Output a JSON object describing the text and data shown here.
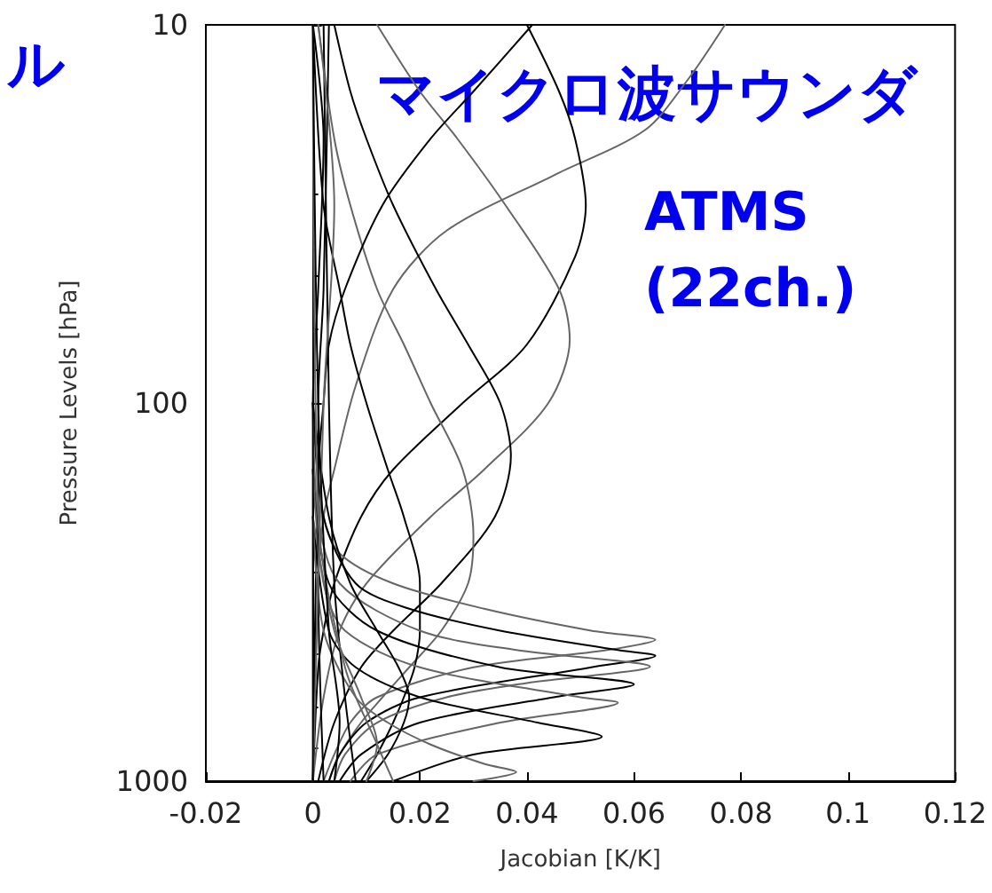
{
  "chart_data": {
    "type": "line",
    "xlabel": "Jacobian [K/K]",
    "ylabel": "Pressure Levels [hPa]",
    "annotations": [
      "ル",
      "マイクロ波サウンダ",
      "ATMS",
      "(22ch.)"
    ],
    "xlim": [
      -0.02,
      0.12
    ],
    "xticks": [
      -0.02,
      0,
      0.02,
      0.04,
      0.06,
      0.08,
      0.1,
      0.12
    ],
    "ylim": [
      1000,
      10
    ],
    "yticks": [
      10,
      100,
      1000
    ],
    "log": "y",
    "marker": "none",
    "line_style": "solid",
    "series": [
      {
        "color": "#666666",
        "x": [
          0.077,
          0.07,
          0.062,
          0.045,
          0.025,
          0.015,
          0.008,
          0.004,
          0.002,
          0.001,
          0
        ],
        "values": [
          10,
          14,
          19,
          25,
          35,
          50,
          90,
          150,
          200,
          300,
          1000
        ]
      },
      {
        "color": "#000000",
        "x": [
          0.04,
          0.046,
          0.049,
          0.051,
          0.049,
          0.04,
          0.028,
          0.015,
          0.009,
          0.004,
          0.002,
          0.001,
          0
        ],
        "values": [
          10,
          15,
          20,
          30,
          41,
          70,
          100,
          150,
          200,
          300,
          400,
          500,
          1000
        ]
      },
      {
        "color": "#666666",
        "x": [
          0.012,
          0.02,
          0.027,
          0.036,
          0.046,
          0.048,
          0.044,
          0.032,
          0.022,
          0.01,
          0.005,
          0.002,
          0
        ],
        "values": [
          10,
          15,
          20,
          30,
          50,
          68,
          100,
          150,
          200,
          300,
          400,
          600,
          1000
        ]
      },
      {
        "color": "#000000",
        "x": [
          0.004,
          0.007,
          0.01,
          0.015,
          0.023,
          0.029,
          0.035,
          0.037,
          0.034,
          0.024,
          0.015,
          0.009,
          0.004,
          0.001
        ],
        "values": [
          10,
          15,
          20,
          30,
          50,
          70,
          100,
          138,
          200,
          300,
          400,
          500,
          700,
          1000
        ]
      },
      {
        "color": "#666666",
        "x": [
          0.001,
          0.004,
          0.007,
          0.012,
          0.017,
          0.022,
          0.028,
          0.03,
          0.029,
          0.024,
          0.018,
          0.013,
          0.009,
          0.005,
          0.003
        ],
        "values": [
          10,
          20,
          30,
          50,
          70,
          100,
          150,
          225,
          300,
          400,
          500,
          600,
          700,
          850,
          1000
        ]
      },
      {
        "color": "#000000",
        "x": [
          0,
          0.002,
          0.005,
          0.007,
          0.01,
          0.014,
          0.017,
          0.02,
          0.02,
          0.019,
          0.017,
          0.015,
          0.012,
          0.009
        ],
        "values": [
          10,
          30,
          50,
          70,
          100,
          150,
          200,
          300,
          400,
          500,
          600,
          700,
          850,
          1000
        ]
      },
      {
        "color": "#000000",
        "x": [
          0.041,
          0.03,
          0.022,
          0.013,
          0.006,
          0.003,
          0.002,
          0.001,
          0
        ],
        "values": [
          10,
          15,
          20,
          30,
          50,
          70,
          100,
          150,
          1000
        ]
      },
      {
        "color": "#666666",
        "x": [
          0,
          0.002,
          0.005,
          0.015,
          0.032,
          0.052,
          0.064,
          0.055,
          0.03,
          0.012,
          0.007,
          0.004,
          0.002
        ],
        "values": [
          100,
          200,
          250,
          300,
          350,
          400,
          423,
          450,
          500,
          600,
          700,
          850,
          1000
        ]
      },
      {
        "color": "#000000",
        "x": [
          0,
          0.002,
          0.008,
          0.018,
          0.035,
          0.057,
          0.064,
          0.052,
          0.02,
          0.01,
          0.005,
          0.003
        ],
        "values": [
          100,
          200,
          300,
          350,
          400,
          450,
          466,
          500,
          600,
          700,
          850,
          1000
        ]
      },
      {
        "color": "#666666",
        "x": [
          0,
          0.001,
          0.005,
          0.02,
          0.038,
          0.063,
          0.04,
          0.025,
          0.012,
          0.006,
          0.004
        ],
        "values": [
          100,
          200,
          300,
          400,
          450,
          498,
          550,
          600,
          700,
          850,
          1000
        ]
      },
      {
        "color": "#000000",
        "x": [
          0,
          0.003,
          0.012,
          0.035,
          0.06,
          0.045,
          0.02,
          0.009,
          0.005
        ],
        "values": [
          150,
          300,
          400,
          500,
          555,
          600,
          700,
          850,
          1000
        ]
      },
      {
        "color": "#666666",
        "x": [
          0,
          0.002,
          0.006,
          0.02,
          0.05,
          0.057,
          0.035,
          0.012,
          0.007
        ],
        "values": [
          150,
          300,
          400,
          500,
          600,
          620,
          700,
          850,
          1000
        ]
      },
      {
        "color": "#000000",
        "x": [
          0,
          0.003,
          0.008,
          0.02,
          0.042,
          0.054,
          0.03,
          0.015
        ],
        "values": [
          200,
          400,
          500,
          600,
          700,
          762,
          850,
          1000
        ]
      },
      {
        "color": "#666666",
        "x": [
          0,
          0.002,
          0.008,
          0.014,
          0.022,
          0.032,
          0.038,
          0.03
        ],
        "values": [
          200,
          400,
          600,
          700,
          800,
          900,
          946,
          1000
        ]
      },
      {
        "color": "#000000",
        "x": [
          0,
          0.003,
          0.007,
          0.012,
          0.016,
          0.018,
          0.017,
          0.014,
          0.01
        ],
        "values": [
          100,
          200,
          300,
          400,
          500,
          600,
          700,
          850,
          1000
        ]
      },
      {
        "color": "#666666",
        "x": [
          0,
          0.004,
          0.009,
          0.012,
          0.01
        ],
        "values": [
          200,
          400,
          600,
          800,
          1000
        ]
      },
      {
        "color": "#000000",
        "x": [
          0.002,
          0.003,
          0.004,
          0.006,
          0.008
        ],
        "values": [
          10,
          100,
          300,
          600,
          1000
        ]
      },
      {
        "color": "#000000",
        "x": [
          0.003,
          0.002,
          0.001,
          0.001,
          0.002
        ],
        "values": [
          10,
          50,
          100,
          300,
          1000
        ]
      },
      {
        "color": "#666666",
        "x": [
          0.001,
          0.004,
          0.002,
          0
        ],
        "values": [
          10,
          30,
          100,
          1000
        ]
      },
      {
        "color": "#000000",
        "x": [
          0,
          0.002,
          0.001,
          0,
          0
        ],
        "values": [
          10,
          20,
          50,
          100,
          1000
        ]
      },
      {
        "color": "#666666",
        "x": [
          0,
          0.001,
          0.006,
          0.012,
          0.015
        ],
        "values": [
          10,
          200,
          500,
          800,
          1000
        ]
      },
      {
        "color": "#000000",
        "x": [
          0,
          0.001,
          0.003,
          0.005,
          0.004
        ],
        "values": [
          10,
          100,
          400,
          700,
          1000
        ]
      }
    ]
  }
}
